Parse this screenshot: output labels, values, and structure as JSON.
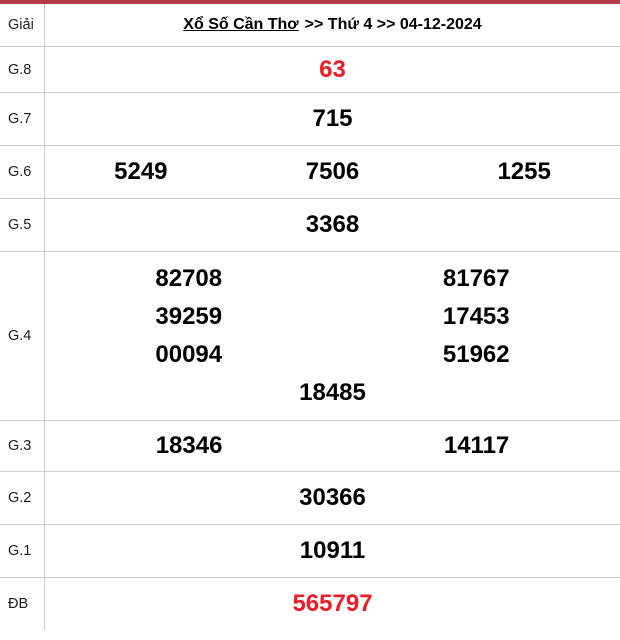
{
  "table": {
    "corner_label": "Giải",
    "title_link": "Xổ Số Cần Thơ",
    "title_rest": ">> Thứ 4 >> 04-12-2024"
  },
  "prizes": {
    "g8": {
      "label": "G.8",
      "numbers": [
        "63"
      ]
    },
    "g7": {
      "label": "G.7",
      "numbers": [
        "715"
      ]
    },
    "g6": {
      "label": "G.6",
      "numbers": [
        "5249",
        "7506",
        "1255"
      ]
    },
    "g5": {
      "label": "G.5",
      "numbers": [
        "3368"
      ]
    },
    "g4": {
      "label": "G.4",
      "numbers": [
        "82708",
        "81767",
        "39259",
        "17453",
        "00094",
        "51962",
        "18485"
      ]
    },
    "g3": {
      "label": "G.3",
      "numbers": [
        "18346",
        "14117"
      ]
    },
    "g2": {
      "label": "G.2",
      "numbers": [
        "30366"
      ]
    },
    "g1": {
      "label": "G.1",
      "numbers": [
        "10911"
      ]
    },
    "db": {
      "label": "ĐB",
      "numbers": [
        "565797"
      ]
    }
  },
  "colors": {
    "accent_bar": "#b43a4a",
    "highlight_red": "#ee1c25",
    "grid_line": "#cdcdcd",
    "number_black": "#000000"
  }
}
